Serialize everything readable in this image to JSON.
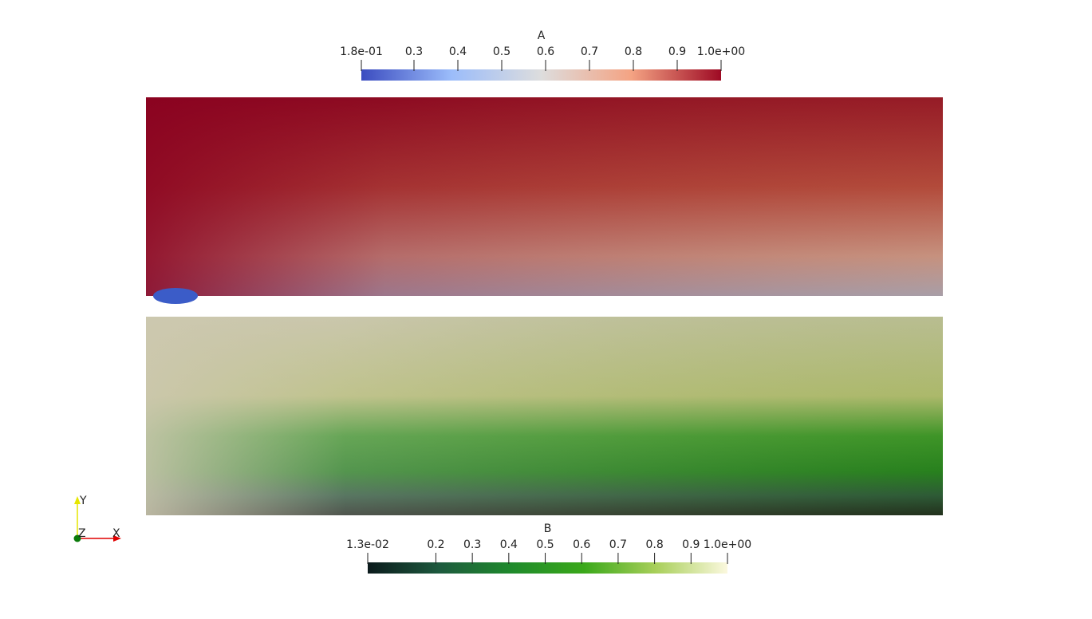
{
  "colorbars": [
    {
      "title": "A",
      "range": [
        0.18,
        1.0
      ],
      "colors": [
        "#3b4cc0",
        "#9bbcfa",
        "#dddddd",
        "#f4a383",
        "#9e0a24"
      ],
      "ticks": [
        {
          "value": 0.18,
          "label": "1.8e-01"
        },
        0.3,
        0.4,
        0.5,
        0.6,
        0.7,
        0.8,
        0.9,
        {
          "value": 1.0,
          "label": "1.0e+00"
        }
      ]
    },
    {
      "title": "B",
      "range": [
        0.013,
        1.0
      ],
      "colors": [
        "#0b1a1c",
        "#1d5a3e",
        "#1f8a2c",
        "#3aa81a",
        "#a8cf5a",
        "#fbf8de"
      ],
      "ticks": [
        {
          "value": 0.013,
          "label": "1.3e-02"
        },
        0.2,
        0.3,
        0.4,
        0.5,
        0.6,
        0.7,
        0.8,
        0.9,
        {
          "value": 1.0,
          "label": "1.0e+00"
        }
      ]
    }
  ],
  "axes_widget": {
    "labels": [
      "Y",
      "Z",
      "X"
    ]
  }
}
